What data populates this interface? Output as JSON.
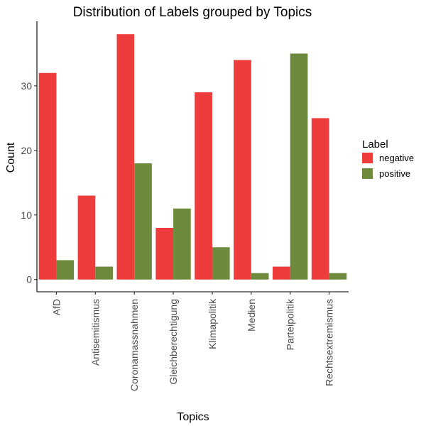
{
  "chart_data": {
    "type": "bar",
    "title": "Distribution of Labels grouped by Topics",
    "xlabel": "Topics",
    "ylabel": "Count",
    "categories": [
      "AfD",
      "Antisemitismus",
      "Coronamassnahmen",
      "Gleichberechtigung",
      "Klimapolitik",
      "Medien",
      "Parteipolitik",
      "Rechtsextremismus"
    ],
    "series": [
      {
        "name": "negative",
        "color": "#EE3B3B",
        "values": [
          32,
          13,
          38,
          8,
          29,
          34,
          2,
          25
        ]
      },
      {
        "name": "positive",
        "color": "#6E8B3D",
        "values": [
          3,
          2,
          18,
          11,
          5,
          1,
          35,
          1
        ]
      }
    ],
    "y_ticks": [
      0,
      10,
      20,
      30
    ],
    "ylim": [
      -1.9,
      40
    ],
    "legend": {
      "title": "Label",
      "placement": "right"
    },
    "grid": false
  }
}
